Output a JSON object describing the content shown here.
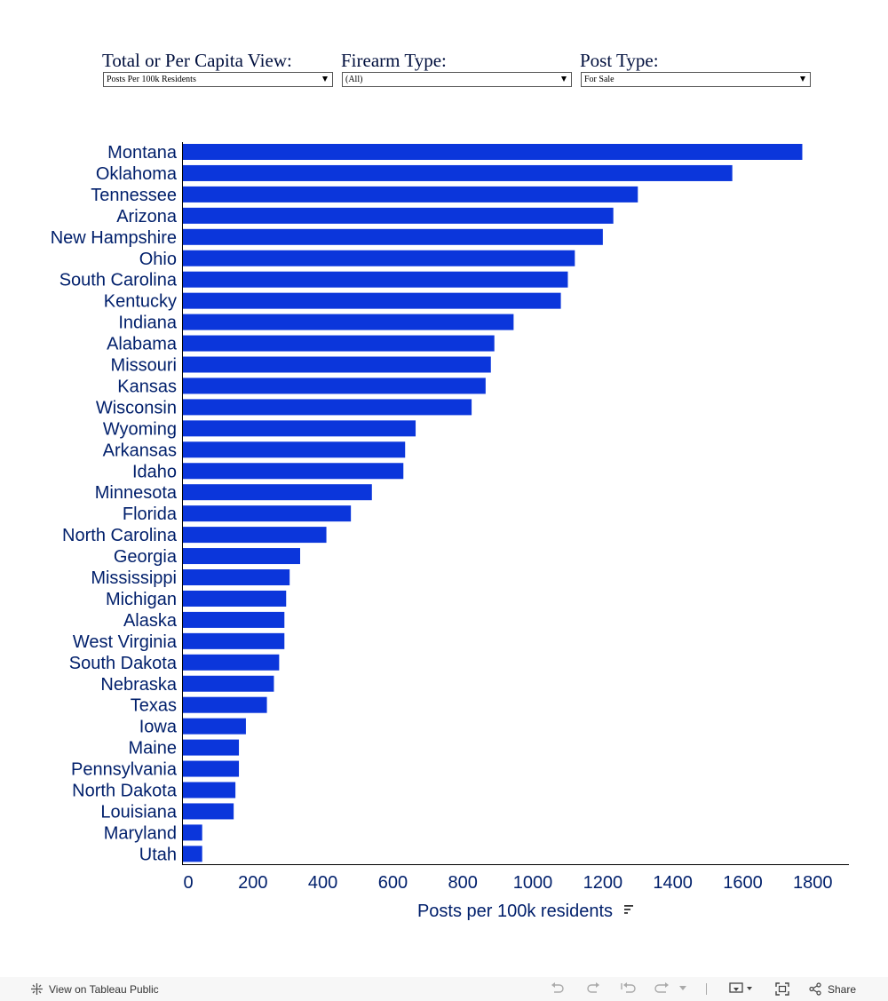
{
  "filters": [
    {
      "label": "Total or Per Capita View:",
      "value": "Posts Per 100k Residents"
    },
    {
      "label": "Firearm Type:",
      "value": "(All)"
    },
    {
      "label": "Post Type:",
      "value": "For Sale"
    }
  ],
  "chart_data": {
    "type": "bar",
    "orientation": "horizontal",
    "title": "",
    "xlabel": "Posts per 100k residents",
    "ylabel": "",
    "xlim": [
      0,
      1850
    ],
    "xticks": [
      0,
      200,
      400,
      600,
      800,
      1000,
      1200,
      1400,
      1600,
      1800
    ],
    "bar_color": "#0b36db",
    "label_color": "#001f6b",
    "grid": false,
    "categories": [
      "Montana",
      "Oklahoma",
      "Tennessee",
      "Arizona",
      "New Hampshire",
      "Ohio",
      "South Carolina",
      "Kentucky",
      "Indiana",
      "Alabama",
      "Missouri",
      "Kansas",
      "Wisconsin",
      "Wyoming",
      "Arkansas",
      "Idaho",
      "Minnesota",
      "Florida",
      "North Carolina",
      "Georgia",
      "Mississippi",
      "Michigan",
      "Alaska",
      "West Virginia",
      "South Dakota",
      "Nebraska",
      "Texas",
      "Iowa",
      "Maine",
      "Pennsylvania",
      "North Dakota",
      "Louisiana",
      "Maryland",
      "Utah"
    ],
    "values": [
      1770,
      1570,
      1300,
      1230,
      1200,
      1120,
      1100,
      1080,
      945,
      890,
      880,
      865,
      825,
      665,
      635,
      630,
      540,
      480,
      410,
      335,
      305,
      295,
      290,
      290,
      275,
      260,
      240,
      180,
      160,
      160,
      150,
      145,
      55,
      55
    ]
  },
  "footer": {
    "view_label": "View on Tableau Public",
    "share_label": "Share"
  }
}
